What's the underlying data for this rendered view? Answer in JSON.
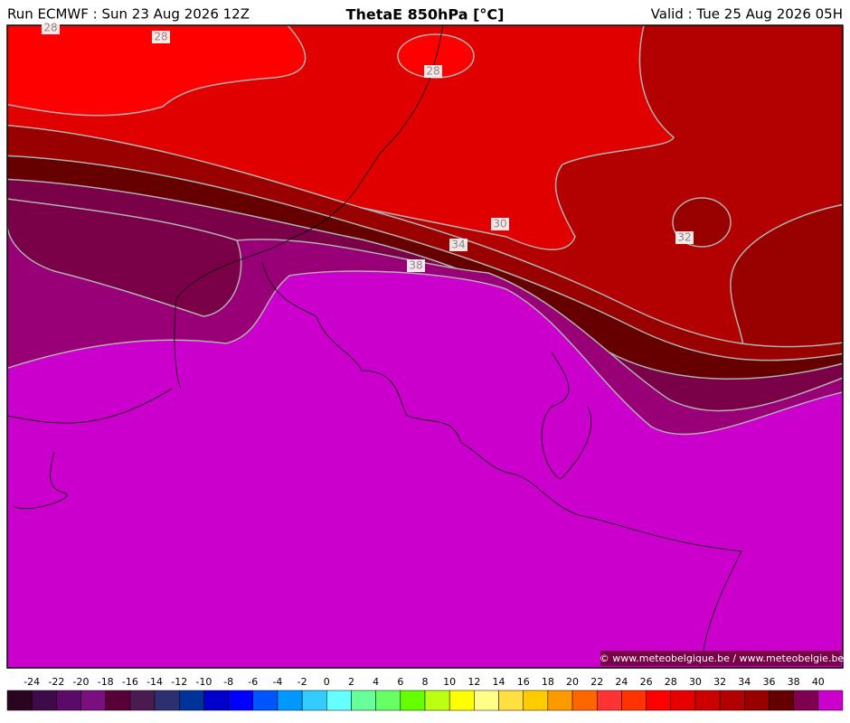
{
  "header": {
    "left": "Run ECMWF : Sun 23 Aug 2026 12Z",
    "title": "ThetaE 850hPa [°C]",
    "right": "Valid : Tue 25 Aug 2026 05H"
  },
  "map": {
    "contour_labels": [
      28,
      28,
      28,
      30,
      34,
      38,
      32
    ],
    "credit": "© www.meteobelgique.be / www.meteobelgie.be"
  },
  "colorbar": {
    "labels": [
      -24,
      -22,
      -20,
      -18,
      -16,
      -14,
      -12,
      -10,
      -8,
      -6,
      -4,
      -2,
      0,
      2,
      4,
      6,
      8,
      10,
      12,
      14,
      16,
      18,
      20,
      22,
      24,
      26,
      28,
      30,
      32,
      34,
      36,
      38,
      40
    ],
    "colors": [
      "#2a0520",
      "#3d0a4a",
      "#5c0a6a",
      "#7a1080",
      "#5a0038",
      "#4a1a50",
      "#2d3070",
      "#003399",
      "#0000cc",
      "#0000ff",
      "#0055ff",
      "#0099ff",
      "#33ccff",
      "#66ffff",
      "#66ff99",
      "#66ff66",
      "#66ff00",
      "#bbff11",
      "#ffff00",
      "#ffff88",
      "#ffe040",
      "#ffcc00",
      "#ff9900",
      "#ff6600",
      "#ff3333",
      "#ff3300",
      "#ff0000",
      "#e60000",
      "#cc0000",
      "#b30000",
      "#990000",
      "#660000",
      "#800050",
      "#cc00cc"
    ]
  }
}
